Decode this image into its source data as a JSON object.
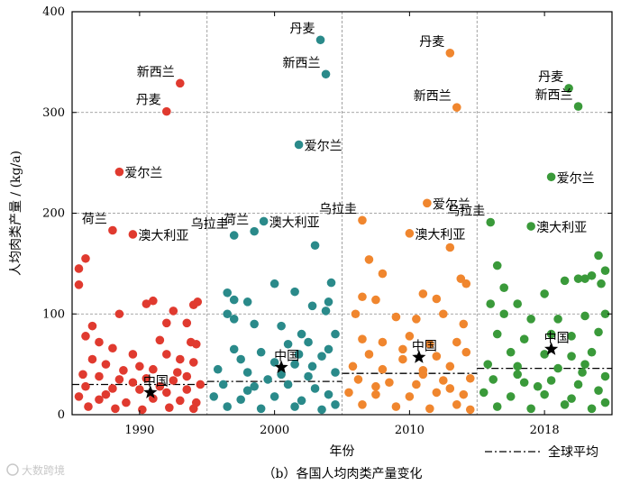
{
  "chart_data": {
    "type": "scatter",
    "ylabel": "人均肉类产量 / (kg/a)",
    "xlabel": "年份",
    "caption": "（b）各国人均肉类产量变化",
    "ylim": [
      0,
      400
    ],
    "yticks": [
      0,
      100,
      200,
      300,
      400
    ],
    "categories": [
      "1990",
      "2000",
      "2010",
      "2018"
    ],
    "grid": true,
    "legend": {
      "position": "bottom-right",
      "label": "全球平均",
      "style": "dash-dot"
    },
    "global_average": [
      30,
      33,
      41,
      46
    ],
    "colors": [
      "#e03a2f",
      "#2a8a8a",
      "#f0862e",
      "#3a9a3a"
    ],
    "china_label": "中国",
    "china": [
      22,
      47,
      57,
      65
    ],
    "china_offsets": [
      0.08,
      0.05,
      0.07,
      0.05
    ],
    "named_points": [
      [
        {
          "label": "新西兰",
          "x": 0.3,
          "value": 329
        },
        {
          "label": "丹麦",
          "x": 0.2,
          "value": 301
        },
        {
          "label": "爱尔兰",
          "x": -0.15,
          "value": 241
        },
        {
          "label": "荷兰",
          "x": -0.2,
          "value": 183
        },
        {
          "label": "澳大利亚",
          "x": -0.05,
          "value": 179
        }
      ],
      [
        {
          "label": "丹麦",
          "x": 0.34,
          "value": 372
        },
        {
          "label": "新西兰",
          "x": 0.38,
          "value": 338
        },
        {
          "label": "爱尔兰",
          "x": 0.18,
          "value": 268
        },
        {
          "label": "澳大利亚",
          "x": -0.08,
          "value": 192
        },
        {
          "label": "乌拉圭",
          "x": -0.3,
          "value": 178
        },
        {
          "label": "荷兰",
          "x": -0.15,
          "value": 182
        }
      ],
      [
        {
          "label": "丹麦",
          "x": 0.3,
          "value": 359
        },
        {
          "label": "新西兰",
          "x": 0.35,
          "value": 305
        },
        {
          "label": "爱尔兰",
          "x": 0.13,
          "value": 210
        },
        {
          "label": "乌拉圭",
          "x": -0.35,
          "value": 193
        },
        {
          "label": "澳大利亚",
          "x": 0.0,
          "value": 180
        }
      ],
      [
        {
          "label": "丹麦",
          "x": 0.18,
          "value": 324
        },
        {
          "label": "新西兰",
          "x": 0.25,
          "value": 306
        },
        {
          "label": "爱尔兰",
          "x": 0.05,
          "value": 236
        },
        {
          "label": "乌拉圭",
          "x": -0.4,
          "value": 191
        },
        {
          "label": "澳大利亚",
          "x": -0.1,
          "value": 187
        }
      ]
    ],
    "other_points": [
      [
        [
          -0.45,
          145
        ],
        [
          -0.4,
          155
        ],
        [
          -0.45,
          129
        ],
        [
          -0.35,
          88
        ],
        [
          -0.4,
          78
        ],
        [
          -0.3,
          72
        ],
        [
          -0.15,
          100
        ],
        [
          0.05,
          110
        ],
        [
          0.1,
          113
        ],
        [
          0.2,
          91
        ],
        [
          0.25,
          103
        ],
        [
          0.4,
          109
        ],
        [
          0.43,
          112
        ],
        [
          0.35,
          91
        ],
        [
          0.38,
          72
        ],
        [
          0.42,
          70
        ],
        [
          -0.2,
          66
        ],
        [
          -0.05,
          60
        ],
        [
          0.15,
          74
        ],
        [
          0.2,
          60
        ],
        [
          0.3,
          55
        ],
        [
          -0.35,
          55
        ],
        [
          -0.25,
          50
        ],
        [
          0.0,
          48
        ],
        [
          0.1,
          45
        ],
        [
          0.4,
          52
        ],
        [
          -0.42,
          40
        ],
        [
          -0.3,
          38
        ],
        [
          -0.15,
          35
        ],
        [
          0.05,
          36
        ],
        [
          0.25,
          34
        ],
        [
          0.35,
          38
        ],
        [
          0.45,
          30
        ],
        [
          -0.4,
          28
        ],
        [
          -0.2,
          26
        ],
        [
          0.0,
          25
        ],
        [
          0.2,
          22
        ],
        [
          0.35,
          25
        ],
        [
          -0.45,
          18
        ],
        [
          -0.3,
          15
        ],
        [
          -0.1,
          12
        ],
        [
          0.1,
          16
        ],
        [
          0.3,
          14
        ],
        [
          0.42,
          12
        ],
        [
          -0.38,
          8
        ],
        [
          -0.18,
          6
        ],
        [
          0.02,
          5
        ],
        [
          0.22,
          7
        ],
        [
          0.4,
          6
        ],
        [
          -0.25,
          20
        ],
        [
          0.15,
          28
        ],
        [
          -0.05,
          32
        ],
        [
          0.28,
          42
        ],
        [
          -0.12,
          44
        ]
      ],
      [
        [
          -0.35,
          121
        ],
        [
          -0.3,
          114
        ],
        [
          -0.2,
          112
        ],
        [
          0.0,
          130
        ],
        [
          0.3,
          168
        ],
        [
          0.42,
          131
        ],
        [
          0.15,
          122
        ],
        [
          0.28,
          108
        ],
        [
          0.38,
          103
        ],
        [
          0.4,
          112
        ],
        [
          -0.35,
          100
        ],
        [
          -0.3,
          95
        ],
        [
          -0.15,
          90
        ],
        [
          0.05,
          88
        ],
        [
          0.2,
          80
        ],
        [
          0.45,
          80
        ],
        [
          -0.3,
          65
        ],
        [
          -0.1,
          62
        ],
        [
          0.1,
          70
        ],
        [
          0.25,
          72
        ],
        [
          0.4,
          65
        ],
        [
          -0.25,
          55
        ],
        [
          0.0,
          52
        ],
        [
          0.15,
          50
        ],
        [
          0.35,
          58
        ],
        [
          -0.42,
          45
        ],
        [
          -0.2,
          42
        ],
        [
          0.05,
          40
        ],
        [
          0.25,
          38
        ],
        [
          0.45,
          42
        ],
        [
          -0.38,
          30
        ],
        [
          -0.15,
          28
        ],
        [
          0.1,
          30
        ],
        [
          0.3,
          26
        ],
        [
          -0.45,
          18
        ],
        [
          -0.25,
          15
        ],
        [
          0.0,
          18
        ],
        [
          0.2,
          14
        ],
        [
          0.4,
          20
        ],
        [
          -0.35,
          8
        ],
        [
          -0.1,
          6
        ],
        [
          0.15,
          8
        ],
        [
          0.35,
          5
        ],
        [
          0.45,
          10
        ],
        [
          -0.2,
          24
        ],
        [
          0.28,
          48
        ],
        [
          -0.05,
          35
        ],
        [
          0.18,
          60
        ]
      ],
      [
        [
          -0.3,
          154
        ],
        [
          -0.2,
          140
        ],
        [
          -0.35,
          117
        ],
        [
          -0.25,
          114
        ],
        [
          0.1,
          120
        ],
        [
          0.2,
          115
        ],
        [
          0.38,
          135
        ],
        [
          0.42,
          130
        ],
        [
          0.3,
          166
        ],
        [
          -0.4,
          100
        ],
        [
          -0.1,
          97
        ],
        [
          0.05,
          95
        ],
        [
          0.25,
          100
        ],
        [
          0.4,
          90
        ],
        [
          -0.35,
          75
        ],
        [
          -0.2,
          72
        ],
        [
          0.0,
          78
        ],
        [
          0.15,
          70
        ],
        [
          0.35,
          72
        ],
        [
          -0.3,
          60
        ],
        [
          -0.05,
          55
        ],
        [
          0.2,
          58
        ],
        [
          0.42,
          62
        ],
        [
          -0.42,
          48
        ],
        [
          -0.2,
          45
        ],
        [
          0.1,
          44
        ],
        [
          0.3,
          48
        ],
        [
          -0.38,
          35
        ],
        [
          -0.15,
          32
        ],
        [
          0.05,
          30
        ],
        [
          0.25,
          34
        ],
        [
          0.45,
          36
        ],
        [
          -0.45,
          22
        ],
        [
          -0.25,
          20
        ],
        [
          0.0,
          18
        ],
        [
          0.2,
          22
        ],
        [
          0.4,
          20
        ],
        [
          -0.35,
          10
        ],
        [
          -0.1,
          8
        ],
        [
          0.15,
          6
        ],
        [
          0.35,
          10
        ],
        [
          0.45,
          5
        ],
        [
          -0.25,
          28
        ],
        [
          0.1,
          40
        ],
        [
          0.3,
          26
        ],
        [
          -0.05,
          65
        ]
      ],
      [
        [
          -0.35,
          148
        ],
        [
          -0.3,
          126
        ],
        [
          -0.2,
          110
        ],
        [
          0.0,
          120
        ],
        [
          0.15,
          133
        ],
        [
          0.25,
          135
        ],
        [
          0.3,
          135
        ],
        [
          0.35,
          138
        ],
        [
          0.4,
          158
        ],
        [
          0.45,
          143
        ],
        [
          0.42,
          130
        ],
        [
          -0.4,
          110
        ],
        [
          -0.3,
          100
        ],
        [
          -0.1,
          95
        ],
        [
          0.1,
          95
        ],
        [
          0.3,
          98
        ],
        [
          0.45,
          100
        ],
        [
          -0.35,
          80
        ],
        [
          -0.15,
          75
        ],
        [
          0.05,
          80
        ],
        [
          0.2,
          78
        ],
        [
          0.4,
          82
        ],
        [
          -0.25,
          62
        ],
        [
          0.0,
          60
        ],
        [
          0.2,
          58
        ],
        [
          0.35,
          62
        ],
        [
          -0.42,
          50
        ],
        [
          -0.2,
          48
        ],
        [
          0.1,
          46
        ],
        [
          0.3,
          50
        ],
        [
          -0.38,
          35
        ],
        [
          -0.15,
          32
        ],
        [
          0.05,
          34
        ],
        [
          0.25,
          30
        ],
        [
          0.45,
          38
        ],
        [
          -0.45,
          22
        ],
        [
          -0.25,
          18
        ],
        [
          0.0,
          20
        ],
        [
          0.2,
          16
        ],
        [
          0.4,
          24
        ],
        [
          -0.35,
          8
        ],
        [
          -0.1,
          6
        ],
        [
          0.15,
          10
        ],
        [
          0.35,
          6
        ],
        [
          0.45,
          12
        ],
        [
          -0.2,
          40
        ],
        [
          0.28,
          42
        ],
        [
          -0.05,
          28
        ]
      ]
    ]
  },
  "watermark": "大数跨境"
}
